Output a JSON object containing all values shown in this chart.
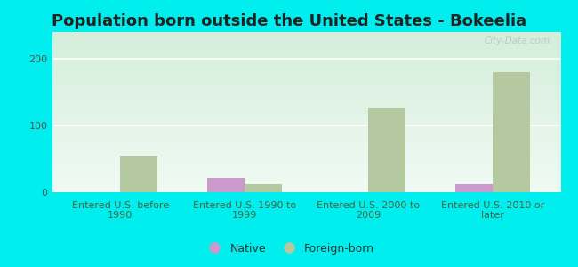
{
  "title": "Population born outside the United States - Bokeelia",
  "categories": [
    "Entered U.S. before\n1990",
    "Entered U.S. 1990 to\n1999",
    "Entered U.S. 2000 to\n2009",
    "Entered U.S. 2010 or\nlater"
  ],
  "native_values": [
    0,
    22,
    0,
    12
  ],
  "foreign_born_values": [
    55,
    12,
    127,
    180
  ],
  "native_color": "#cc99cc",
  "foreign_born_color": "#b5c9a0",
  "background_color_top": "#e8f5ee",
  "background_color_bottom": "#d0ecd8",
  "outer_background": "#00eeee",
  "ylim": [
    0,
    240
  ],
  "yticks": [
    0,
    100,
    200
  ],
  "bar_width": 0.3,
  "title_fontsize": 13,
  "tick_fontsize": 8,
  "legend_fontsize": 9,
  "watermark": "City-Data.com"
}
